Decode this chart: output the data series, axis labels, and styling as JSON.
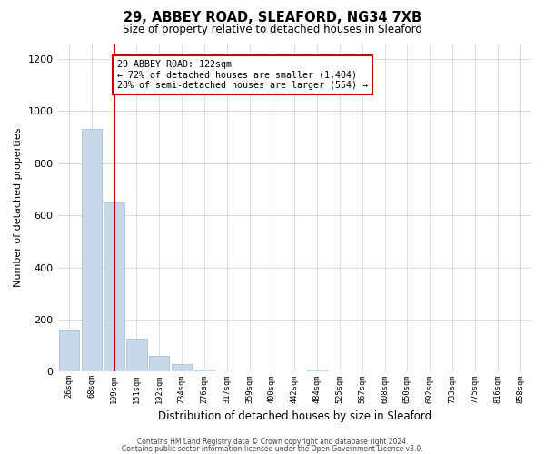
{
  "title": "29, ABBEY ROAD, SLEAFORD, NG34 7XB",
  "subtitle": "Size of property relative to detached houses in Sleaford",
  "xlabel": "Distribution of detached houses by size in Sleaford",
  "ylabel": "Number of detached properties",
  "categories": [
    "26sqm",
    "68sqm",
    "109sqm",
    "151sqm",
    "192sqm",
    "234sqm",
    "276sqm",
    "317sqm",
    "359sqm",
    "400sqm",
    "442sqm",
    "484sqm",
    "525sqm",
    "567sqm",
    "608sqm",
    "650sqm",
    "692sqm",
    "733sqm",
    "775sqm",
    "816sqm",
    "858sqm"
  ],
  "values": [
    160,
    930,
    650,
    125,
    62,
    28,
    10,
    0,
    0,
    0,
    0,
    10,
    0,
    0,
    0,
    0,
    0,
    0,
    0,
    0,
    0
  ],
  "bar_color": "#c8d8e8",
  "bar_edgecolor": "#a0b8cc",
  "vline_x_index": 2.0,
  "vline_color": "#cc0000",
  "annotation_title": "29 ABBEY ROAD: 122sqm",
  "annotation_line1": "← 72% of detached houses are smaller (1,404)",
  "annotation_line2": "28% of semi-detached houses are larger (554) →",
  "annotation_box_edgecolor": "#cc0000",
  "ylim": [
    0,
    1260
  ],
  "yticks": [
    0,
    200,
    400,
    600,
    800,
    1000,
    1200
  ],
  "footer1": "Contains HM Land Registry data © Crown copyright and database right 2024.",
  "footer2": "Contains public sector information licensed under the Open Government Licence v3.0.",
  "background_color": "#ffffff",
  "grid_color": "#d0d8e0"
}
